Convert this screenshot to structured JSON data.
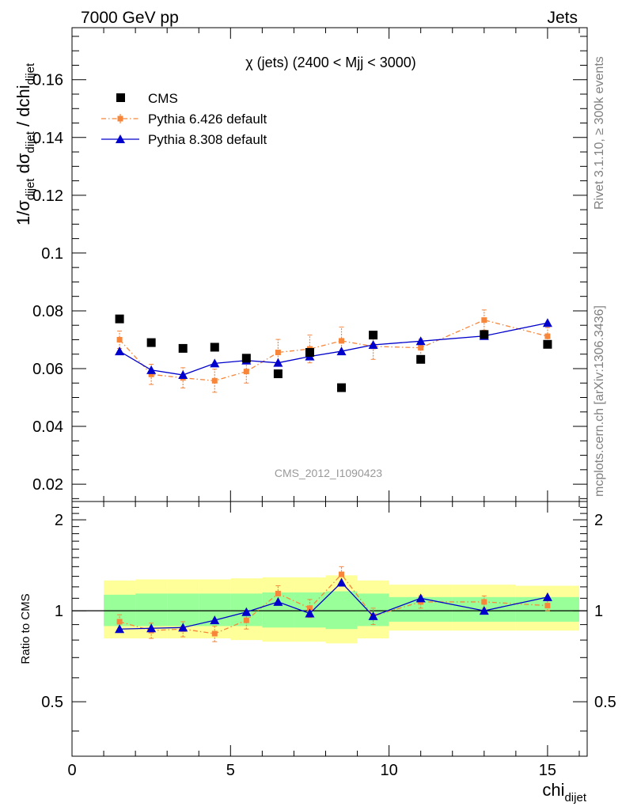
{
  "header": {
    "left": "7000 GeV pp",
    "right": "Jets"
  },
  "side_labels": {
    "rivet": "Rivet 3.1.10, ≥ 300k events",
    "mcplots": "mcplots.cern.ch [arXiv:1306.3436]"
  },
  "watermark": "CMS_2012_I1090423",
  "colors": {
    "cms": "#000000",
    "pythia6": "#f7863a",
    "pythia8": "#0000cc",
    "band_yellow": "#ffff99",
    "band_green": "#99ff99"
  },
  "chart_data": [
    {
      "type": "scatter",
      "panel": "main",
      "title": "χ (jets) (2400 < Mjj < 3000)",
      "ylabel": "1/σ_dijet dσ_dijet / dchi_dijet",
      "ylabel_parts": {
        "a": "1/σ",
        "a_sub": "dijet",
        "b": " dσ",
        "b_sub": "dijet",
        "c": " / dchi",
        "c_sub": "dijet"
      },
      "ylim": [
        0.014,
        0.178
      ],
      "xlim": [
        0,
        16.25
      ],
      "yticks": [
        0.02,
        0.04,
        0.06,
        0.08,
        0.1,
        0.12,
        0.14,
        0.16
      ],
      "ytick_labels": [
        "0.02",
        "0.04",
        "0.06",
        "0.08",
        "0.1",
        "0.12",
        "0.14",
        "0.16"
      ],
      "legend": [
        "CMS",
        "Pythia 6.426 default",
        "Pythia 8.308 default"
      ],
      "legend_position": "top-left",
      "series": [
        {
          "name": "CMS",
          "x": [
            1.5,
            2.5,
            3.5,
            4.5,
            5.5,
            6.5,
            7.5,
            8.5,
            9.5,
            11,
            13,
            15
          ],
          "y": [
            0.0772,
            0.069,
            0.067,
            0.0674,
            0.0636,
            0.0582,
            0.0656,
            0.0534,
            0.0716,
            0.0632,
            0.0718,
            0.0684
          ]
        },
        {
          "name": "Pythia 6.426 default",
          "x": [
            1.5,
            2.5,
            3.5,
            4.5,
            5.5,
            6.5,
            7.5,
            8.5,
            9.5,
            11,
            13,
            15
          ],
          "y": [
            0.07,
            0.058,
            0.0568,
            0.0558,
            0.059,
            0.0656,
            0.0668,
            0.0696,
            0.0677,
            0.0672,
            0.0768,
            0.0712
          ],
          "err": [
            0.003,
            0.0035,
            0.0035,
            0.004,
            0.004,
            0.0045,
            0.0048,
            0.0048,
            0.0045,
            0.003,
            0.0035,
            0.003
          ]
        },
        {
          "name": "Pythia 8.308 default",
          "x": [
            1.5,
            2.5,
            3.5,
            4.5,
            5.5,
            6.5,
            7.5,
            8.5,
            9.5,
            11,
            13,
            15
          ],
          "y": [
            0.066,
            0.0595,
            0.0578,
            0.0618,
            0.0628,
            0.062,
            0.0642,
            0.066,
            0.0682,
            0.0695,
            0.0713,
            0.0758
          ]
        }
      ]
    },
    {
      "type": "scatter",
      "panel": "ratio",
      "ylabel": "Ratio to CMS",
      "xlabel": "chi_dijet",
      "xlabel_parts": {
        "main": "chi",
        "sub": "dijet"
      },
      "ylim": [
        0.33,
        2.3
      ],
      "yscale": "log",
      "xlim": [
        0,
        16.25
      ],
      "xticks": [
        0,
        5,
        10,
        15
      ],
      "xtick_labels": [
        "0",
        "5",
        "10",
        "15"
      ],
      "yticks": [
        0.5,
        1,
        2
      ],
      "ytick_labels": [
        "0.5",
        "1",
        "2"
      ],
      "bands": {
        "bin_edges": [
          [
            1,
            2
          ],
          [
            2,
            3
          ],
          [
            3,
            4
          ],
          [
            4,
            5
          ],
          [
            5,
            6
          ],
          [
            6,
            7
          ],
          [
            7,
            8
          ],
          [
            8,
            9
          ],
          [
            9,
            10
          ],
          [
            10,
            12
          ],
          [
            12,
            14
          ],
          [
            14,
            16
          ]
        ],
        "green": [
          [
            0.89,
            1.13
          ],
          [
            0.89,
            1.14
          ],
          [
            0.89,
            1.14
          ],
          [
            0.89,
            1.14
          ],
          [
            0.89,
            1.14
          ],
          [
            0.88,
            1.15
          ],
          [
            0.88,
            1.15
          ],
          [
            0.87,
            1.16
          ],
          [
            0.89,
            1.14
          ],
          [
            0.92,
            1.11
          ],
          [
            0.92,
            1.11
          ],
          [
            0.92,
            1.11
          ]
        ],
        "yellow": [
          [
            0.81,
            1.26
          ],
          [
            0.81,
            1.27
          ],
          [
            0.81,
            1.27
          ],
          [
            0.81,
            1.27
          ],
          [
            0.8,
            1.28
          ],
          [
            0.79,
            1.29
          ],
          [
            0.79,
            1.29
          ],
          [
            0.78,
            1.31
          ],
          [
            0.81,
            1.26
          ],
          [
            0.86,
            1.22
          ],
          [
            0.86,
            1.22
          ],
          [
            0.86,
            1.21
          ]
        ]
      },
      "series": [
        {
          "name": "Pythia 6.426 default",
          "x": [
            1.5,
            2.5,
            3.5,
            4.5,
            5.5,
            6.5,
            7.5,
            8.5,
            9.5,
            11,
            13,
            15
          ],
          "y": [
            0.92,
            0.86,
            0.87,
            0.84,
            0.93,
            1.14,
            1.02,
            1.32,
            0.96,
            1.07,
            1.07,
            1.04
          ],
          "err": [
            0.05,
            0.05,
            0.05,
            0.05,
            0.06,
            0.07,
            0.07,
            0.08,
            0.06,
            0.05,
            0.05,
            0.04
          ]
        },
        {
          "name": "Pythia 8.308 default",
          "x": [
            1.5,
            2.5,
            3.5,
            4.5,
            5.5,
            6.5,
            7.5,
            8.5,
            9.5,
            11,
            13,
            15
          ],
          "y": [
            0.87,
            0.875,
            0.88,
            0.93,
            0.99,
            1.07,
            0.98,
            1.24,
            0.96,
            1.1,
            1.0,
            1.11
          ]
        }
      ]
    }
  ]
}
